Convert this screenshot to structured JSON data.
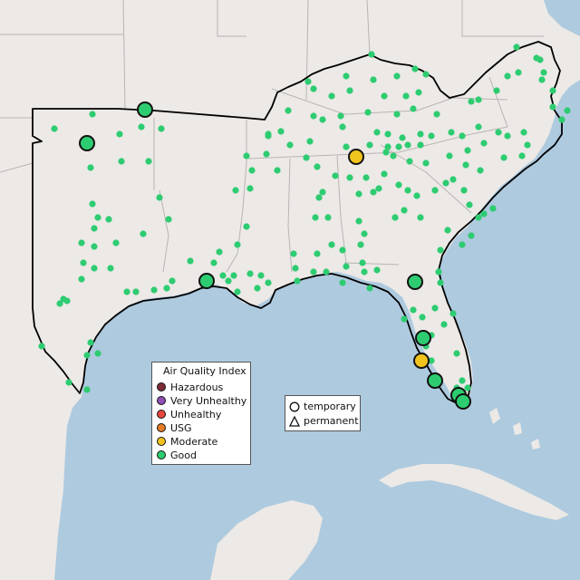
{
  "legend": {
    "title": "Air Quality Index",
    "categories": [
      {
        "label": "Hazardous",
        "color": "#7e2a35"
      },
      {
        "label": "Very Unhealthy",
        "color": "#8f4fb5"
      },
      {
        "label": "Unhealthy",
        "color": "#e8453c"
      },
      {
        "label": "USG",
        "color": "#e57b25"
      },
      {
        "label": "Moderate",
        "color": "#f1c31d"
      },
      {
        "label": "Good",
        "color": "#2ecc71"
      }
    ]
  },
  "shape_legend": {
    "temporary_label": "temporary",
    "permanent_label": "permanent",
    "temporary_icon": "circle-icon",
    "permanent_icon": "triangle-icon"
  },
  "colors": {
    "land": "#ece9e6",
    "water": "#aecadf",
    "state_border": "#b8b4b4",
    "region_outline": "#000000"
  }
}
